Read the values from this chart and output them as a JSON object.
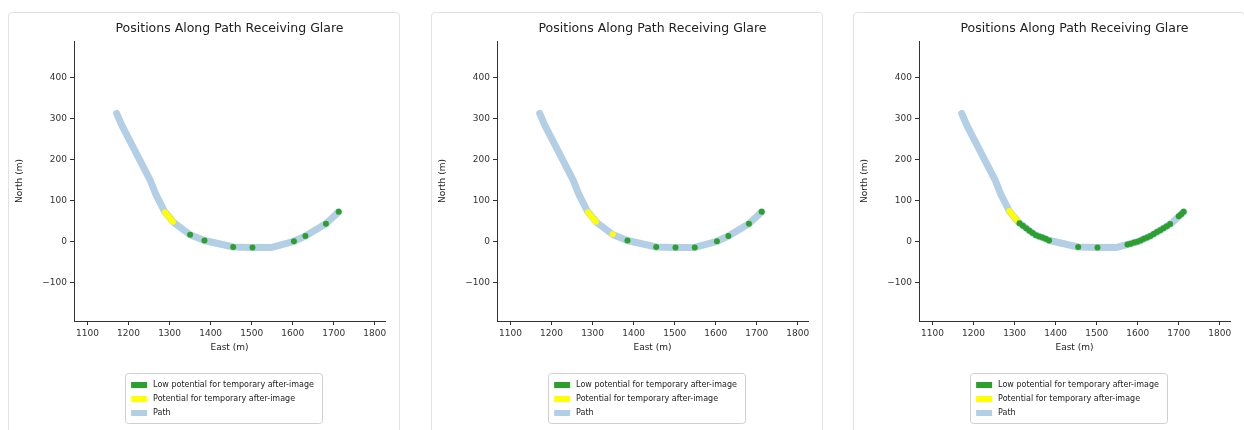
{
  "chart_data": [
    {
      "type": "scatter",
      "title": "Positions Along Path Receiving Glare",
      "xlabel": "East (m)",
      "ylabel": "North (m)",
      "xlim": [
        1067,
        1825
      ],
      "ylim": [
        -195,
        490
      ],
      "xticks": [
        1100,
        1200,
        1300,
        1400,
        1500,
        1600,
        1700,
        1800
      ],
      "yticks": [
        -100,
        0,
        100,
        200,
        300,
        400
      ],
      "legend": "bottom",
      "marker": "circle",
      "series": [
        {
          "name": "Low potential for temporary after-image",
          "color": "#2ca02c",
          "x": [
            1350,
            1385,
            1455,
            1502,
            1603,
            1631,
            1681,
            1712
          ],
          "values": [
            16,
            2,
            -14,
            -15,
            0,
            13,
            43,
            72
          ]
        },
        {
          "name": "Potential for temporary after-image",
          "color": "#ffff00",
          "x": [
            1289,
            1294,
            1299,
            1304,
            1308
          ],
          "values": [
            71,
            65,
            59,
            53,
            48
          ]
        },
        {
          "name": "Path",
          "type": "line",
          "marker": "none",
          "color": "#b3cfe5",
          "x": [
            1171,
            1183,
            1252,
            1266,
            1287,
            1310,
            1350,
            1385,
            1455,
            1502,
            1549,
            1603,
            1631,
            1681,
            1712
          ],
          "values": [
            313,
            285,
            151,
            116,
            74,
            46,
            16,
            2,
            -14,
            -15,
            -15,
            0,
            13,
            43,
            72
          ]
        }
      ]
    },
    {
      "type": "scatter",
      "title": "Positions Along Path Receiving Glare",
      "xlabel": "East (m)",
      "ylabel": "North (m)",
      "xlim": [
        1067,
        1825
      ],
      "ylim": [
        -195,
        490
      ],
      "xticks": [
        1100,
        1200,
        1300,
        1400,
        1500,
        1600,
        1700,
        1800
      ],
      "yticks": [
        -100,
        0,
        100,
        200,
        300,
        400
      ],
      "legend": "bottom",
      "marker": "circle",
      "series": [
        {
          "name": "Low potential for temporary after-image",
          "color": "#2ca02c",
          "x": [
            1385,
            1455,
            1502,
            1549,
            1603,
            1631,
            1681,
            1712
          ],
          "values": [
            2,
            -14,
            -15,
            -15,
            0,
            13,
            43,
            72
          ]
        },
        {
          "name": "Potential for temporary after-image",
          "color": "#ffff00",
          "x": [
            1289,
            1294,
            1299,
            1304,
            1308,
            1349
          ],
          "values": [
            71,
            65,
            59,
            53,
            48,
            17
          ]
        },
        {
          "name": "Path",
          "type": "line",
          "marker": "none",
          "color": "#b3cfe5",
          "x": [
            1171,
            1183,
            1252,
            1266,
            1287,
            1310,
            1350,
            1385,
            1455,
            1502,
            1549,
            1603,
            1631,
            1681,
            1712
          ],
          "values": [
            313,
            285,
            151,
            116,
            74,
            46,
            16,
            2,
            -14,
            -15,
            -15,
            0,
            13,
            43,
            72
          ]
        }
      ]
    },
    {
      "type": "scatter",
      "title": "Positions Along Path Receiving Glare",
      "xlabel": "East (m)",
      "ylabel": "North (m)",
      "xlim": [
        1067,
        1825
      ],
      "ylim": [
        -195,
        490
      ],
      "xticks": [
        1100,
        1200,
        1300,
        1400,
        1500,
        1600,
        1700,
        1800
      ],
      "yticks": [
        -100,
        0,
        100,
        200,
        300,
        400
      ],
      "legend": "bottom",
      "marker": "circle",
      "series": [
        {
          "name": "Low potential for temporary after-image",
          "color": "#2ca02c",
          "x": [
            1312,
            1320,
            1328,
            1336,
            1344,
            1352,
            1360,
            1368,
            1376,
            1384,
            1455,
            1502,
            1575,
            1583,
            1591,
            1599,
            1607,
            1615,
            1623,
            1631,
            1639,
            1647,
            1655,
            1663,
            1671,
            1679,
            1700,
            1706,
            1712
          ],
          "values": [
            44,
            38,
            32,
            26,
            20,
            15,
            12,
            9,
            6,
            2,
            -14,
            -15,
            -8,
            -6,
            -3,
            -1,
            2,
            6,
            9,
            13,
            18,
            23,
            27,
            32,
            37,
            42,
            61,
            66,
            72
          ]
        },
        {
          "name": "Potential for temporary after-image",
          "color": "#ffff00",
          "x": [
            1287,
            1292,
            1297,
            1302,
            1306
          ],
          "values": [
            74,
            68,
            62,
            56,
            51
          ]
        },
        {
          "name": "Path",
          "type": "line",
          "marker": "none",
          "color": "#b3cfe5",
          "x": [
            1171,
            1183,
            1252,
            1266,
            1287,
            1310,
            1350,
            1385,
            1455,
            1502,
            1549,
            1603,
            1631,
            1681,
            1712
          ],
          "values": [
            313,
            285,
            151,
            116,
            74,
            46,
            16,
            2,
            -14,
            -15,
            -15,
            0,
            13,
            43,
            72
          ]
        }
      ]
    }
  ]
}
